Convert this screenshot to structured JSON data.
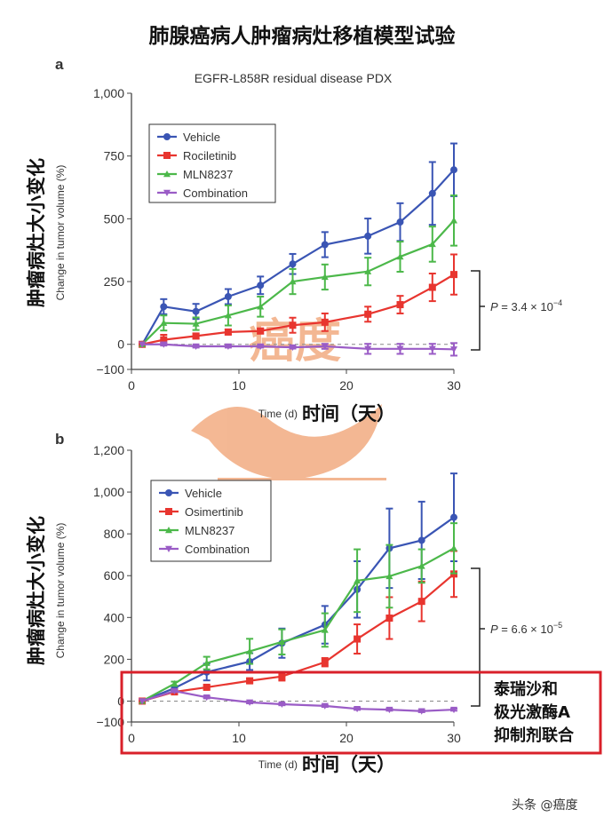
{
  "title": "肺腺癌病人肿瘤病灶移植模型试验",
  "watermark": {
    "logo_text": "癌度",
    "credit": "头条 @癌度",
    "color": "#f0a070"
  },
  "annotation": {
    "lines": [
      "泰瑞沙和",
      "极光激酶A",
      "抑制剂联合"
    ],
    "box_color": "#d9202a"
  },
  "chart_data": [
    {
      "panel": "a",
      "type": "line",
      "title": "EGFR-L858R residual disease PDX",
      "xlabel": "Time (d)",
      "xlabel_cn": "时间（天）",
      "ylabel": "Change in tumor volume (%)",
      "ylabel_cn": "肿瘤病灶大小变化",
      "xlim": [
        0,
        30
      ],
      "ylim": [
        -100,
        1000
      ],
      "xticks": [
        "0",
        "10",
        "20",
        "30"
      ],
      "yticks": [
        {
          "v": -100,
          "label": "−100"
        },
        {
          "v": 0,
          "label": "0"
        },
        {
          "v": 250,
          "label": "250"
        },
        {
          "v": 500,
          "label": "500"
        },
        {
          "v": 750,
          "label": "750"
        },
        {
          "v": 1000,
          "label": "1,000"
        }
      ],
      "legend": "top-left",
      "x": [
        1,
        3,
        6,
        9,
        12,
        15,
        18,
        22,
        25,
        28,
        30
      ],
      "pvalue": {
        "prefix": "P",
        "text": " = 3.4 × 10",
        "exp": "−4"
      },
      "series": [
        {
          "name": "Vehicle",
          "color": "#3a55b4",
          "marker": "circle",
          "values": [
            0,
            150,
            131,
            190,
            235,
            320,
            397,
            431,
            487,
            601,
            695
          ],
          "errors": [
            0,
            30,
            30,
            30,
            35,
            40,
            50,
            70,
            75,
            125,
            105
          ]
        },
        {
          "name": "Rociletinib",
          "color": "#e8352f",
          "marker": "square",
          "values": [
            0,
            18,
            33,
            49,
            53,
            76,
            88,
            120,
            158,
            227,
            278
          ],
          "errors": [
            0,
            20,
            10,
            10,
            10,
            30,
            35,
            30,
            35,
            55,
            80
          ]
        },
        {
          "name": "MLN8237",
          "color": "#4cb84a",
          "marker": "triangle-up",
          "values": [
            0,
            85,
            82,
            115,
            150,
            250,
            268,
            290,
            349,
            399,
            493
          ],
          "errors": [
            0,
            30,
            25,
            40,
            40,
            50,
            50,
            55,
            60,
            70,
            100
          ]
        },
        {
          "name": "Combination",
          "color": "#9a5cc6",
          "marker": "triangle-down",
          "values": [
            0,
            0,
            -8,
            -8,
            -8,
            -12,
            -8,
            -18,
            -18,
            -18,
            -20
          ],
          "errors": [
            0,
            5,
            5,
            5,
            5,
            5,
            10,
            20,
            20,
            20,
            25
          ]
        }
      ]
    },
    {
      "panel": "b",
      "type": "line",
      "title": "",
      "xlabel": "Time (d)",
      "xlabel_cn": "时间（天）",
      "ylabel": "Change in tumor volume (%)",
      "ylabel_cn": "肿瘤病灶大小变化",
      "xlim": [
        0,
        30
      ],
      "ylim": [
        -100,
        1200
      ],
      "xticks": [
        "0",
        "10",
        "20",
        "30"
      ],
      "yticks": [
        {
          "v": -100,
          "label": "−100"
        },
        {
          "v": 0,
          "label": "0"
        },
        {
          "v": 200,
          "label": "200"
        },
        {
          "v": 400,
          "label": "400"
        },
        {
          "v": 600,
          "label": "600"
        },
        {
          "v": 800,
          "label": "800"
        },
        {
          "v": 1000,
          "label": "1,000"
        },
        {
          "v": 1200,
          "label": "1,200"
        }
      ],
      "legend": "top-left",
      "x": [
        1,
        4,
        7,
        11,
        14,
        18,
        21,
        24,
        27,
        30
      ],
      "pvalue": {
        "prefix": "P",
        "text": " = 6.6 × 10",
        "exp": "−5"
      },
      "series": [
        {
          "name": "Vehicle",
          "color": "#3a55b4",
          "marker": "circle",
          "values": [
            0,
            62,
            139,
            189,
            277,
            365,
            534,
            731,
            769,
            879
          ],
          "errors": [
            0,
            10,
            40,
            40,
            70,
            90,
            135,
            190,
            185,
            210
          ]
        },
        {
          "name": "Osimertinib",
          "color": "#e8352f",
          "marker": "square",
          "values": [
            0,
            44,
            66,
            97,
            118,
            186,
            297,
            397,
            477,
            608
          ],
          "errors": [
            0,
            5,
            10,
            10,
            20,
            20,
            70,
            100,
            95,
            110
          ]
        },
        {
          "name": "MLN8237",
          "color": "#4cb84a",
          "marker": "triangle-up",
          "values": [
            0,
            83,
            182,
            238,
            283,
            340,
            576,
            597,
            646,
            731
          ],
          "errors": [
            0,
            10,
            30,
            60,
            60,
            80,
            150,
            150,
            80,
            120
          ]
        },
        {
          "name": "Combination",
          "color": "#9a5cc6",
          "marker": "triangle-down",
          "values": [
            0,
            48,
            18,
            -6,
            -15,
            -23,
            -37,
            -41,
            -48,
            -41
          ],
          "errors": [
            0,
            5,
            5,
            5,
            5,
            5,
            5,
            5,
            5,
            5
          ]
        }
      ]
    }
  ]
}
